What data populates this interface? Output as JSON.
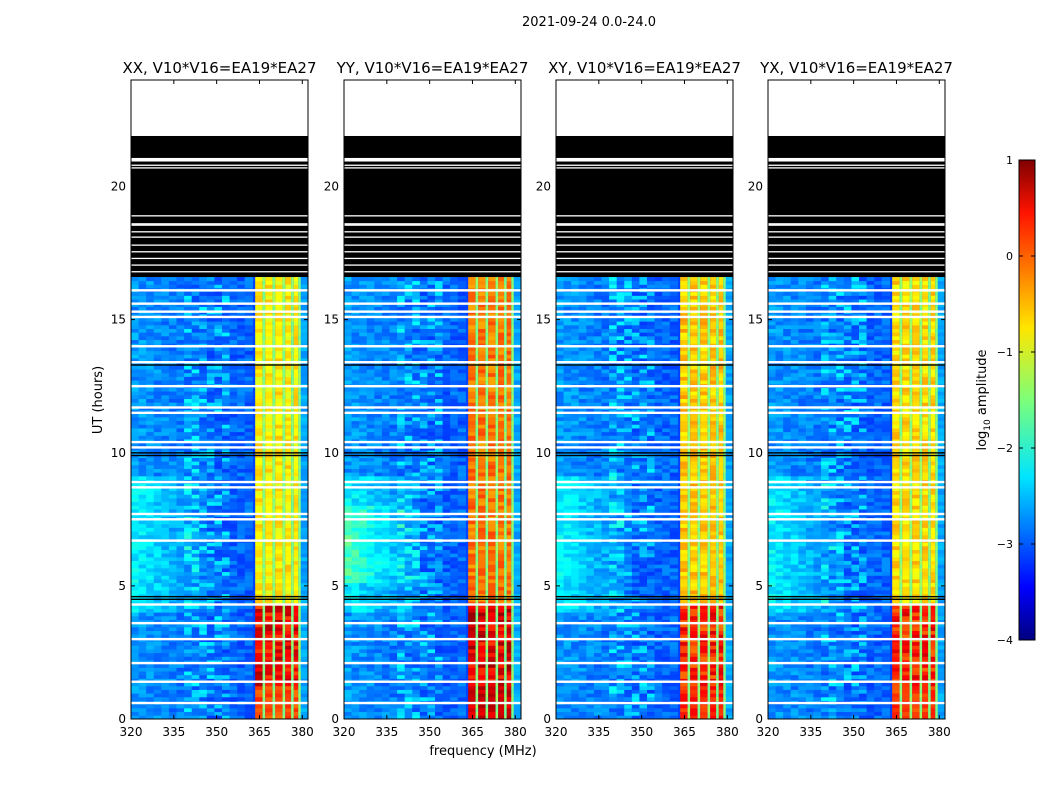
{
  "suptitle": "2021-09-24 0.0-24.0",
  "chart_data": {
    "type": "heatmap",
    "xlabel": "frequency (MHz)",
    "ylabel": "UT (hours)",
    "xlim": [
      320,
      382
    ],
    "ylim": [
      0,
      24
    ],
    "xticks": [
      320,
      335,
      350,
      365,
      380
    ],
    "yticks": [
      0,
      5,
      10,
      15,
      20
    ],
    "colorbar": {
      "label_prefix": "log",
      "label_sub": "10",
      "label_suffix": " amplitude",
      "range": [
        -4,
        1
      ],
      "ticks": [
        1,
        0,
        -1,
        -2,
        -3,
        -4
      ],
      "colormap": "jet"
    },
    "flagged_hours": [
      16.6,
      24.0
    ],
    "blank_hours": [
      21.9,
      24.0
    ],
    "rfi_band_mhz": [
      363.5,
      379.5
    ],
    "panels": [
      {
        "title": "XX, V10*V16=EA19*EA27",
        "band_peak_log10": 0.8,
        "band_typical_log10": -0.8
      },
      {
        "title": "YY, V10*V16=EA19*EA27",
        "band_peak_log10": 0.9,
        "band_typical_log10": -0.2
      },
      {
        "title": "XY, V10*V16=EA19*EA27",
        "band_peak_log10": 0.6,
        "band_typical_log10": -0.6
      },
      {
        "title": "YX, V10*V16=EA19*EA27",
        "band_peak_log10": 0.6,
        "band_typical_log10": -0.7
      }
    ]
  }
}
